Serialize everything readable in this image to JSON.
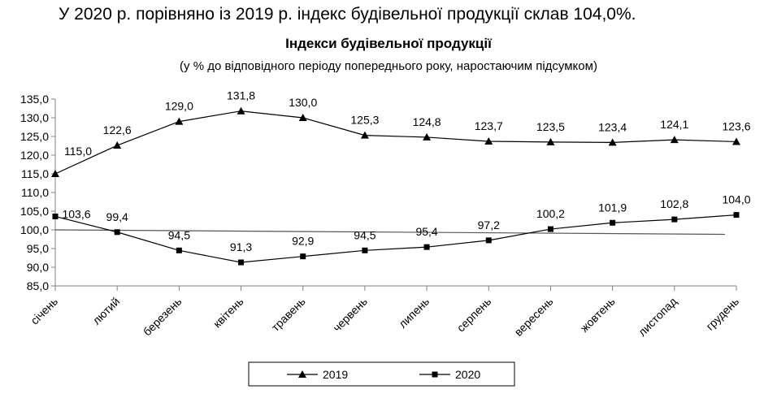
{
  "headline": "У 2020 р. порівняно із 2019 р. індекс будівельної продукції склав 104,0%.",
  "chart_data": {
    "type": "line",
    "title": "Індекси будівельної продукції",
    "subtitle": "(у % до відповідного періоду попереднього року, наростаючим підсумком)",
    "categories": [
      "січень",
      "лютий",
      "березень",
      "квітень",
      "травень",
      "червень",
      "липень",
      "серпень",
      "вересень",
      "жовтень",
      "листопад",
      "грудень"
    ],
    "series": [
      {
        "name": "2019",
        "marker": "triangle",
        "values": [
          115.0,
          122.6,
          129.0,
          131.8,
          130.0,
          125.3,
          124.8,
          123.7,
          123.5,
          123.4,
          124.1,
          123.6
        ],
        "labels": [
          "115,0",
          "122,6",
          "129,0",
          "131,8",
          "130,0",
          "125,3",
          "124,8",
          "123,7",
          "123,5",
          "123,4",
          "124,1",
          "123,6"
        ]
      },
      {
        "name": "2020",
        "marker": "square",
        "values": [
          103.6,
          99.4,
          94.5,
          91.3,
          92.9,
          94.5,
          95.4,
          97.2,
          100.2,
          101.9,
          102.8,
          104.0
        ],
        "labels": [
          "103,6",
          "99,4",
          "94,5",
          "91,3",
          "92,9",
          "94,5",
          "95,4",
          "97,2",
          "100,2",
          "101,9",
          "102,8",
          "104,0"
        ]
      }
    ],
    "reference_line": {
      "from": 100.0,
      "to": 98.8
    },
    "ylim": [
      85.0,
      135.0
    ],
    "ytick_step": 5.0,
    "ytick_labels": [
      "85,0",
      "90,0",
      "95,0",
      "100,0",
      "105,0",
      "110,0",
      "115,0",
      "120,0",
      "125,0",
      "130,0",
      "135,0"
    ],
    "legend": {
      "position": "bottom",
      "entries": [
        "2019",
        "2020"
      ]
    },
    "grid": false
  }
}
